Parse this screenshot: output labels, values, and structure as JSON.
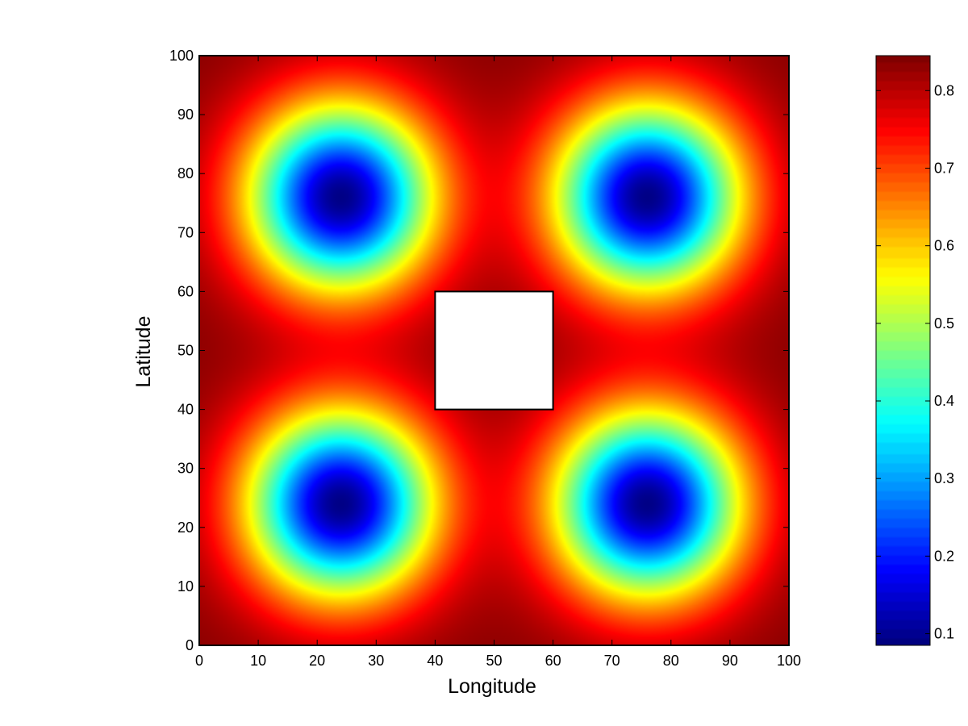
{
  "chart_data": {
    "type": "heatmap",
    "title": "",
    "xlabel": "Longitude",
    "ylabel": "Latitude",
    "xlim": [
      0,
      100
    ],
    "ylim": [
      0,
      100
    ],
    "x_ticks": [
      0,
      10,
      20,
      30,
      40,
      50,
      60,
      70,
      80,
      90,
      100
    ],
    "y_ticks": [
      0,
      10,
      20,
      30,
      40,
      50,
      60,
      70,
      80,
      90,
      100
    ],
    "x_tick_labels": [
      "0",
      "10",
      "20",
      "30",
      "40",
      "50",
      "60",
      "70",
      "80",
      "90",
      "100"
    ],
    "y_tick_labels": [
      "0",
      "10",
      "20",
      "30",
      "40",
      "50",
      "60",
      "70",
      "80",
      "90",
      "100"
    ],
    "colormap": "jet",
    "colorbar": {
      "range": [
        0.085,
        0.845
      ],
      "ticks": [
        0.1,
        0.2,
        0.3,
        0.4,
        0.5,
        0.6,
        0.7,
        0.8
      ],
      "tick_labels": [
        "0.1",
        "0.2",
        "0.3",
        "0.4",
        "0.5",
        "0.6",
        "0.7",
        "0.8"
      ]
    },
    "field": {
      "minima": [
        {
          "x": 24,
          "y": 76,
          "value": 0.09
        },
        {
          "x": 76,
          "y": 76,
          "value": 0.09
        },
        {
          "x": 24,
          "y": 24,
          "value": 0.09
        },
        {
          "x": 76,
          "y": 24,
          "value": 0.09
        }
      ],
      "max_value": 0.84,
      "min_value": 0.09
    },
    "masked_region": {
      "x": [
        40,
        60
      ],
      "y": [
        40,
        60
      ]
    },
    "grid": false
  }
}
